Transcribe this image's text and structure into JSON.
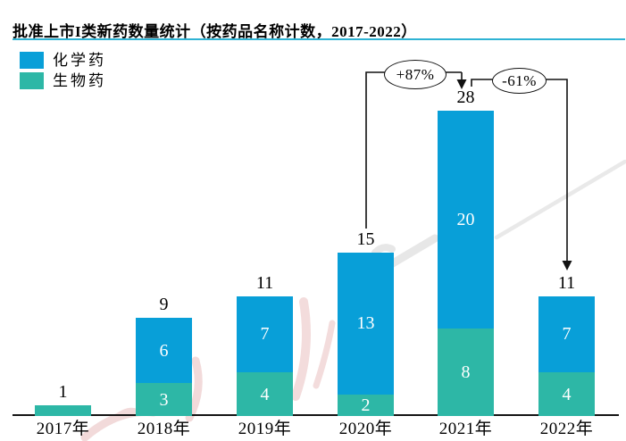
{
  "title": "批准上市I类新药数量统计（按药品名称计数，2017-2022）",
  "legend": {
    "items": [
      {
        "label": "化学药",
        "color": "#089fd8"
      },
      {
        "label": "生物药",
        "color": "#2db7a6"
      }
    ]
  },
  "chart_data": {
    "type": "bar",
    "subtype": "stacked-vertical",
    "title": "批准上市I类新药数量统计（按药品名称计数，2017-2022）",
    "categories": [
      "2017年",
      "2018年",
      "2019年",
      "2020年",
      "2021年",
      "2022年"
    ],
    "series": [
      {
        "key": "chemical",
        "name": "化学药",
        "color": "#089fd8",
        "values": [
          0,
          6,
          7,
          13,
          20,
          7
        ]
      },
      {
        "key": "biological",
        "name": "生物药",
        "color": "#2db7a6",
        "values": [
          1,
          3,
          4,
          2,
          8,
          4
        ]
      }
    ],
    "totals": [
      1,
      9,
      11,
      15,
      28,
      11
    ],
    "stack_order_top_to_bottom": [
      "化学药",
      "生物药"
    ],
    "value_labels": "white numbers inside segments; black totals above each bar",
    "annotations": [
      {
        "label": "+87%",
        "from": "2020年",
        "to": "2021年"
      },
      {
        "label": "-61%",
        "from": "2021年",
        "to": "2022年"
      }
    ],
    "axes": {
      "y_axis_visible": false,
      "gridlines": false
    },
    "legend_position": "top-left",
    "ylim": [
      0,
      28
    ]
  }
}
